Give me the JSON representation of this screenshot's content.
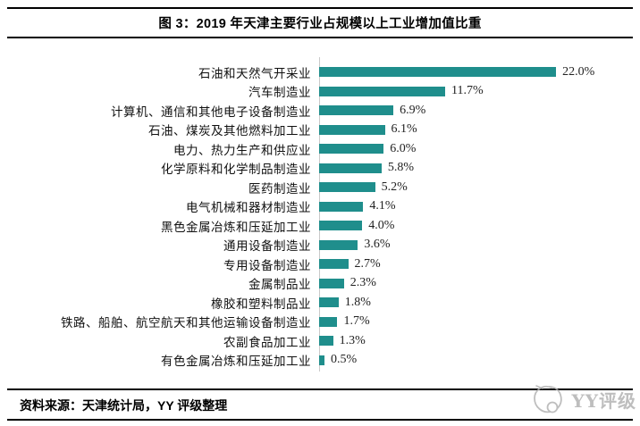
{
  "header": {
    "title": "图 3：2019 年天津主要行业占规模以上工业增加值比重"
  },
  "chart_data": {
    "type": "bar",
    "orientation": "horizontal",
    "title": "图 3：2019 年天津主要行业占规模以上工业增加值比重",
    "categories": [
      "石油和天然气开采业",
      "汽车制造业",
      "计算机、通信和其他电子设备制造业",
      "石油、煤炭及其他燃料加工业",
      "电力、热力生产和供应业",
      "化学原料和化学制品制造业",
      "医药制造业",
      "电气机械和器材制造业",
      "黑色金属冶炼和压延加工业",
      "通用设备制造业",
      "专用设备制造业",
      "金属制品业",
      "橡胶和塑料制品业",
      "铁路、船舶、航空航天和其他运输设备制造业",
      "农副食品加工业",
      "有色金属冶炼和压延加工业"
    ],
    "values": [
      22.0,
      11.7,
      6.9,
      6.1,
      6.0,
      5.8,
      5.2,
      4.1,
      4.0,
      3.6,
      2.7,
      2.3,
      1.8,
      1.7,
      1.3,
      0.5
    ],
    "value_labels": [
      "22.0%",
      "11.7%",
      "6.9%",
      "6.1%",
      "6.0%",
      "5.8%",
      "5.2%",
      "4.1%",
      "4.0%",
      "3.6%",
      "2.7%",
      "2.3%",
      "1.8%",
      "1.7%",
      "1.3%",
      "0.5%"
    ],
    "unit": "%",
    "xlim": [
      0,
      24
    ],
    "grid": false,
    "legend": "none",
    "bar_color": "#1f8e8c",
    "axis_color": "#c9c9c9"
  },
  "footer": {
    "source": "资料来源：天津统计局，YY 评级整理"
  },
  "watermark": {
    "label": "YY评级",
    "color": "#b3b3b3"
  }
}
